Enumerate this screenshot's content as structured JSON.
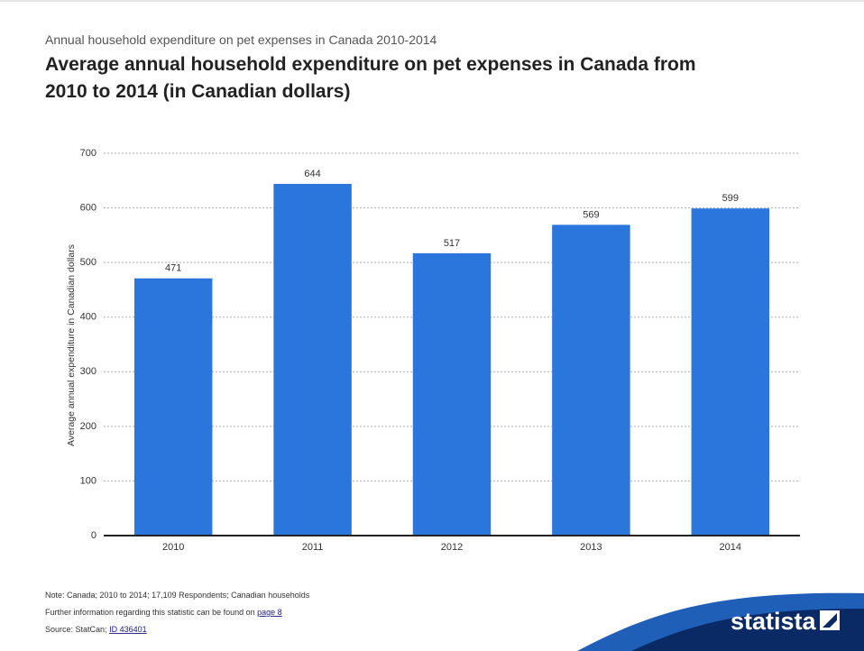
{
  "chart_data": {
    "type": "bar",
    "subtitle": "Annual household expenditure on pet expenses in Canada 2010-2014",
    "title": "Average annual household expenditure on pet expenses in Canada from 2010 to 2014 (in Canadian dollars)",
    "y_label": "Average annual expenditure in Canadian dollars",
    "categories": [
      "2010",
      "2011",
      "2012",
      "2013",
      "2014"
    ],
    "values": [
      471,
      644,
      517,
      569,
      599
    ],
    "color": "#2a76dd",
    "ylim": [
      0,
      700
    ],
    "yticks": [
      0,
      100,
      200,
      300,
      400,
      500,
      600,
      700
    ],
    "grid": true
  },
  "footer": {
    "note": "Note: Canada; 2010 to 2014; 17,109 Respondents; Canadian households",
    "info": "Further information regarding this statistic can be found on",
    "info_link": "page 8",
    "source": "Source: StatCan;",
    "source_link": "ID 436401",
    "logo": "statista"
  }
}
